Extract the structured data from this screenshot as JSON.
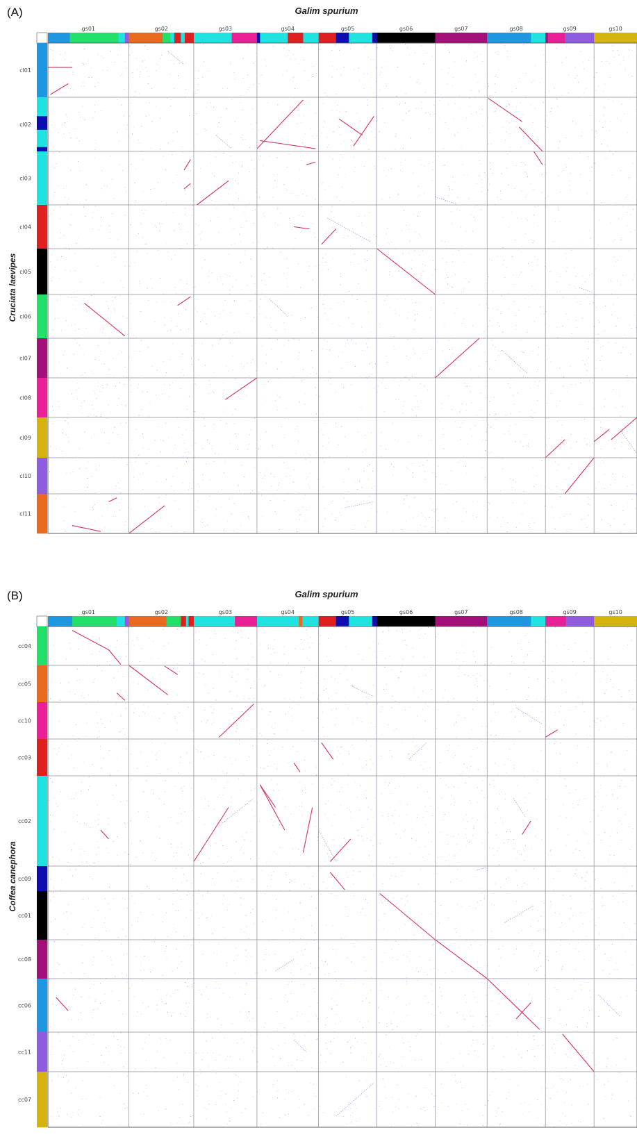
{
  "panels": [
    {
      "label": "(A)",
      "title": "Galim spurium",
      "y_title": "Cruciata laevipes",
      "columns": [
        {
          "name": "gs01",
          "segments": [
            [
              "#1e96e0",
              0.27
            ],
            [
              "#23e06a",
              0.6
            ],
            [
              "#1fe3e0",
              0.08
            ],
            [
              "#8f5ce0",
              0.05
            ]
          ]
        },
        {
          "name": "gs02",
          "segments": [
            [
              "#e96a1f",
              0.52
            ],
            [
              "#23e06a",
              0.12
            ],
            [
              "#1fe3e0",
              0.06
            ],
            [
              "#e02020",
              0.1
            ],
            [
              "#1fe3e0",
              0.06
            ],
            [
              "#e02020",
              0.14
            ]
          ]
        },
        {
          "name": "gs03",
          "segments": [
            [
              "#1fe3e0",
              0.6
            ],
            [
              "#e81f95",
              0.4
            ]
          ]
        },
        {
          "name": "gs04",
          "segments": [
            [
              "#0d0db0",
              0.05
            ],
            [
              "#1fe3e0",
              0.45
            ],
            [
              "#e02020",
              0.25
            ],
            [
              "#1fe3e0",
              0.25
            ]
          ]
        },
        {
          "name": "gs05",
          "segments": [
            [
              "#e02020",
              0.3
            ],
            [
              "#0d0db0",
              0.22
            ],
            [
              "#1fe3e0",
              0.4
            ],
            [
              "#0d0db0",
              0.08
            ]
          ]
        },
        {
          "name": "gs06",
          "segments": [
            [
              "#000000",
              1.0
            ]
          ]
        },
        {
          "name": "gs07",
          "segments": [
            [
              "#a3107a",
              1.0
            ]
          ]
        },
        {
          "name": "gs08",
          "segments": [
            [
              "#1e96e0",
              0.75
            ],
            [
              "#1fe3e0",
              0.25
            ]
          ]
        },
        {
          "name": "gs09",
          "segments": [
            [
              "#a3107a",
              0.05
            ],
            [
              "#e81f95",
              0.35
            ],
            [
              "#8f5ce0",
              0.6
            ]
          ]
        },
        {
          "name": "gs10",
          "segments": [
            [
              "#d4b40d",
              1.0
            ]
          ]
        }
      ],
      "column_widths": [
        1.0,
        0.8,
        0.78,
        0.76,
        0.72,
        0.72,
        0.64,
        0.72,
        0.6,
        0.53
      ],
      "rows": [
        {
          "name": "cl01",
          "segments": [
            [
              "#1e96e0",
              1.0
            ]
          ]
        },
        {
          "name": "cl02",
          "segments": [
            [
              "#1fe3e0",
              0.35
            ],
            [
              "#0d0db0",
              0.25
            ],
            [
              "#1fe3e0",
              0.32
            ],
            [
              "#0d0db0",
              0.08
            ]
          ]
        },
        {
          "name": "cl03",
          "segments": [
            [
              "#1fe3e0",
              1.0
            ]
          ]
        },
        {
          "name": "cl04",
          "segments": [
            [
              "#e02020",
              1.0
            ]
          ]
        },
        {
          "name": "cl05",
          "segments": [
            [
              "#000000",
              1.0
            ]
          ]
        },
        {
          "name": "cl06",
          "segments": [
            [
              "#23e06a",
              1.0
            ]
          ]
        },
        {
          "name": "cl07",
          "segments": [
            [
              "#a3107a",
              1.0
            ]
          ]
        },
        {
          "name": "cl08",
          "segments": [
            [
              "#e81f95",
              1.0
            ]
          ]
        },
        {
          "name": "cl09",
          "segments": [
            [
              "#d4b40d",
              1.0
            ]
          ]
        },
        {
          "name": "cl10",
          "segments": [
            [
              "#8f5ce0",
              1.0
            ]
          ]
        },
        {
          "name": "cl11",
          "segments": [
            [
              "#e96a1f",
              1.0
            ]
          ]
        }
      ],
      "row_heights": [
        78,
        78,
        77,
        63,
        66,
        63,
        57,
        57,
        58,
        52,
        57
      ],
      "synteny_blocks": [
        [
          0,
          0.3,
          0.45,
          0,
          0.45,
          0.6
        ],
        [
          0,
          0.03,
          0.95,
          0.25,
          0.75
        ],
        [
          7,
          0.02,
          0.02,
          0.6,
          0.45
        ],
        [
          7,
          0.55,
          0.55,
          0.95,
          1.0
        ],
        [
          4,
          0.6,
          0.9,
          0.95,
          0.35
        ],
        [
          3,
          0.95,
          0.95,
          0.05,
          0.8
        ],
        [
          4,
          0.35,
          0.4,
          0.75,
          0.7
        ],
        [
          3,
          0.0,
          0.95,
          0.75,
          0.05
        ],
        [
          2,
          0.05,
          1.0,
          0.55,
          0.55
        ],
        [
          3,
          0.8,
          0.25,
          0.95,
          0.2
        ],
        [
          7,
          0.8,
          0.0,
          0.95,
          0.25
        ],
        [
          1,
          0.85,
          0.35,
          0.95,
          0.15
        ],
        [
          1,
          0.85,
          0.7,
          0.95,
          0.6
        ],
        [
          3,
          0.6,
          0.5,
          0.85,
          0.55
        ],
        [
          4,
          0.05,
          0.9,
          0.3,
          0.55
        ],
        [
          5,
          0.0,
          0.0,
          1.0,
          1.0
        ],
        [
          0,
          0.45,
          0.2,
          0.95,
          0.95
        ],
        [
          1,
          0.75,
          0.25,
          0.95,
          0.05
        ],
        [
          6,
          0.0,
          1.0,
          0.85,
          0.0
        ],
        [
          2,
          0.5,
          0.55,
          1.0,
          0.0
        ],
        [
          8,
          0.0,
          1.0,
          0.4,
          0.55
        ],
        [
          9,
          0.0,
          0.6,
          0.35,
          0.3
        ],
        [
          9,
          0.4,
          0.55,
          1.0,
          0.0
        ],
        [
          8,
          0.4,
          1.0,
          1.0,
          0.0
        ],
        [
          0,
          0.75,
          0.2,
          0.85,
          0.1
        ],
        [
          1,
          0.0,
          1.0,
          0.55,
          0.3
        ],
        [
          0,
          0.65,
          0.95,
          0.3,
          0.8
        ]
      ],
      "block_rows": [
        0,
        0,
        1,
        1,
        1,
        1,
        1,
        1,
        2,
        2,
        2,
        2,
        2,
        3,
        3,
        4,
        5,
        5,
        6,
        7,
        8,
        8,
        8,
        9,
        10,
        10,
        10
      ],
      "faint_blocks": [
        [
          1,
          0.6,
          0.15,
          0.85,
          0.4,
          0
        ],
        [
          2,
          0.35,
          0.7,
          0.6,
          0.95,
          1
        ],
        [
          6,
          0.0,
          0.85,
          0.4,
          0.98,
          2
        ],
        [
          4,
          0.15,
          0.3,
          0.9,
          0.85,
          3
        ],
        [
          8,
          0.7,
          0.85,
          0.95,
          0.95,
          4
        ],
        [
          3,
          0.2,
          0.1,
          0.5,
          0.5,
          5
        ],
        [
          7,
          0.25,
          0.3,
          0.7,
          0.9,
          6
        ],
        [
          9,
          0.6,
          0.3,
          1.0,
          0.9,
          8
        ],
        [
          4,
          0.45,
          0.35,
          0.95,
          0.2,
          10
        ]
      ]
    },
    {
      "label": "(B)",
      "title": "Galim spurium",
      "y_title": "Coffea canephora",
      "columns": [
        {
          "name": "gs01",
          "segments": [
            [
              "#1e96e0",
              0.3
            ],
            [
              "#23e06a",
              0.55
            ],
            [
              "#1fe3e0",
              0.1
            ],
            [
              "#8f5ce0",
              0.05
            ]
          ]
        },
        {
          "name": "gs02",
          "segments": [
            [
              "#e96a1f",
              0.58
            ],
            [
              "#23e06a",
              0.22
            ],
            [
              "#e02020",
              0.08
            ],
            [
              "#1fe3e0",
              0.04
            ],
            [
              "#e02020",
              0.08
            ]
          ]
        },
        {
          "name": "gs03",
          "segments": [
            [
              "#1fe3e0",
              0.65
            ],
            [
              "#e81f95",
              0.35
            ]
          ]
        },
        {
          "name": "gs04",
          "segments": [
            [
              "#1fe3e0",
              0.68
            ],
            [
              "#e96a1f",
              0.06
            ],
            [
              "#1fe3e0",
              0.26
            ]
          ]
        },
        {
          "name": "gs05",
          "segments": [
            [
              "#e02020",
              0.3
            ],
            [
              "#0d0db0",
              0.22
            ],
            [
              "#1fe3e0",
              0.4
            ],
            [
              "#0d0db0",
              0.08
            ]
          ]
        },
        {
          "name": "gs06",
          "segments": [
            [
              "#000000",
              1.0
            ]
          ]
        },
        {
          "name": "gs07",
          "segments": [
            [
              "#a3107a",
              1.0
            ]
          ]
        },
        {
          "name": "gs08",
          "segments": [
            [
              "#1e96e0",
              0.75
            ],
            [
              "#1fe3e0",
              0.25
            ]
          ]
        },
        {
          "name": "gs09",
          "segments": [
            [
              "#e81f95",
              0.42
            ],
            [
              "#8f5ce0",
              0.58
            ]
          ]
        },
        {
          "name": "gs10",
          "segments": [
            [
              "#d4b40d",
              1.0
            ]
          ]
        }
      ],
      "column_widths": [
        1.0,
        0.8,
        0.78,
        0.76,
        0.72,
        0.72,
        0.64,
        0.72,
        0.6,
        0.53
      ],
      "rows": [
        {
          "name": "cc04",
          "segments": [
            [
              "#23e06a",
              1.0
            ]
          ]
        },
        {
          "name": "cc05",
          "segments": [
            [
              "#e96a1f",
              1.0
            ]
          ]
        },
        {
          "name": "cc10",
          "segments": [
            [
              "#e81f95",
              1.0
            ]
          ]
        },
        {
          "name": "cc03",
          "segments": [
            [
              "#e02020",
              1.0
            ]
          ]
        },
        {
          "name": "cc02",
          "segments": [
            [
              "#1fe3e0",
              1.0
            ]
          ]
        },
        {
          "name": "cc09",
          "segments": [
            [
              "#0d0db0",
              1.0
            ]
          ]
        },
        {
          "name": "cc01",
          "segments": [
            [
              "#000000",
              1.0
            ]
          ]
        },
        {
          "name": "cc08",
          "segments": [
            [
              "#a3107a",
              1.0
            ]
          ]
        },
        {
          "name": "cc06",
          "segments": [
            [
              "#1e96e0",
              1.0
            ]
          ]
        },
        {
          "name": "cc11",
          "segments": [
            [
              "#8f5ce0",
              1.0
            ]
          ]
        },
        {
          "name": "cc07",
          "segments": [
            [
              "#d4b40d",
              1.0
            ]
          ]
        }
      ],
      "row_heights": [
        56,
        53,
        53,
        53,
        130,
        36,
        70,
        56,
        77,
        57,
        80
      ],
      "synteny_blocks": [
        [
          0,
          0.3,
          0.1,
          0.75,
          0.6
        ],
        [
          0,
          0.75,
          0.6,
          0.9,
          0.98
        ],
        [
          1,
          0.55,
          0.02,
          0.75,
          0.25
        ],
        [
          1,
          0.0,
          0.0,
          0.6,
          0.8
        ],
        [
          0,
          0.85,
          0.75,
          0.95,
          0.95
        ],
        [
          2,
          0.4,
          0.95,
          0.95,
          0.05
        ],
        [
          8,
          0.0,
          0.95,
          0.25,
          0.75
        ],
        [
          4,
          0.05,
          0.1,
          0.25,
          0.55
        ],
        [
          3,
          0.6,
          0.65,
          0.7,
          0.9
        ],
        [
          3,
          0.75,
          0.85,
          0.9,
          0.35
        ],
        [
          3,
          0.05,
          0.1,
          0.45,
          0.6
        ],
        [
          4,
          0.2,
          0.95,
          0.55,
          0.7
        ],
        [
          7,
          0.6,
          0.65,
          0.75,
          0.5
        ],
        [
          2,
          0.0,
          0.95,
          0.55,
          0.35
        ],
        [
          3,
          0.05,
          0.1,
          0.3,
          0.35
        ],
        [
          0,
          0.65,
          0.6,
          0.75,
          0.7
        ],
        [
          4,
          0.2,
          0.25,
          0.45,
          0.95
        ],
        [
          5,
          0.05,
          0.05,
          1.0,
          1.0
        ],
        [
          6,
          0.0,
          0.0,
          1.0,
          1.0
        ],
        [
          7,
          0.0,
          0.0,
          0.9,
          0.95
        ],
        [
          7,
          0.5,
          0.75,
          0.75,
          0.45
        ],
        [
          0,
          0.1,
          0.35,
          0.25,
          0.6
        ],
        [
          8,
          0.35,
          0.05,
          1.0,
          1.0
        ]
      ],
      "block_rows": [
        0,
        0,
        1,
        1,
        1,
        2,
        2,
        3,
        3,
        4,
        4,
        4,
        4,
        4,
        4,
        4,
        5,
        6,
        7,
        8,
        8,
        8,
        9
      ],
      "faint_blocks": [
        [
          4,
          0.55,
          0.55,
          0.95,
          0.85,
          1
        ],
        [
          7,
          0.5,
          0.15,
          0.95,
          0.6,
          2
        ],
        [
          5,
          0.55,
          0.55,
          0.85,
          0.1,
          3
        ],
        [
          4,
          0.0,
          0.6,
          0.3,
          0.95,
          4
        ],
        [
          7,
          0.45,
          0.25,
          0.65,
          0.45,
          4
        ],
        [
          2,
          0.4,
          0.55,
          0.95,
          0.25,
          4
        ],
        [
          6,
          0.8,
          0.15,
          1.0,
          0.05,
          5
        ],
        [
          7,
          0.3,
          0.65,
          0.8,
          0.3,
          6
        ],
        [
          3,
          0.3,
          0.8,
          0.6,
          0.5,
          7
        ],
        [
          9,
          0.1,
          0.3,
          0.6,
          0.7,
          8
        ],
        [
          3,
          0.6,
          0.2,
          0.8,
          0.5,
          9
        ],
        [
          4,
          0.3,
          0.8,
          0.95,
          0.2,
          10
        ]
      ]
    }
  ]
}
